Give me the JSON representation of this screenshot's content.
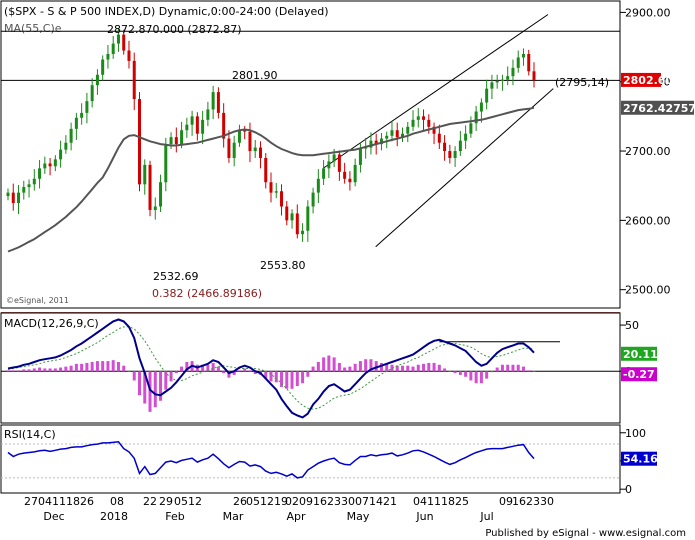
{
  "chart_data": [
    {
      "type": "candlestick",
      "title": "($SPX - S & P 500 INDEX,D) Dynamic,0:00-24:00 (Delayed)",
      "indicator_label": "MA(55,C)e",
      "watermark": "©eSignal, 2011",
      "y_ticks": [
        2900,
        2800,
        2700,
        2600,
        2500
      ],
      "y_tick_labels": [
        "2900.00",
        "2800.00",
        "2700.00",
        "2600.00",
        "2500.00"
      ],
      "ylim": [
        2475,
        2915
      ],
      "price_badge": {
        "value": 2802.6,
        "text": "2802.60",
        "color": "#e00000"
      },
      "ma_badge": {
        "value": 2762.42757,
        "text": "2762.42757",
        "color": "#505050"
      },
      "horizontal_lines": [
        {
          "value": 2872.87,
          "color": "#000000"
        },
        {
          "value": 2801.9,
          "color": "#000000"
        },
        {
          "value": 2466.89186,
          "color": "#8b1a1a"
        }
      ],
      "channel_lines": [
        {
          "from": [
            "Apr-02",
            2675
          ],
          "to": [
            "Jul-31",
            2897
          ]
        },
        {
          "from": [
            "Apr-24",
            2562
          ],
          "to": [
            "Aug-01",
            2790
          ]
        }
      ],
      "annotations": [
        {
          "text": "2872.870.000 (2872.87)",
          "color": "#000000"
        },
        {
          "text": "2801.90",
          "color": "#000000"
        },
        {
          "text": "(2795,14)",
          "color": "#000000"
        },
        {
          "text": "2532.69",
          "color": "#000000"
        },
        {
          "text": "2553.80",
          "color": "#000000"
        },
        {
          "text": "0.382 (2466.89186)",
          "color": "#8b1a1a"
        }
      ],
      "series_close": [
        2640,
        2625,
        2640,
        2648,
        2652,
        2660,
        2675,
        2682,
        2678,
        2688,
        2702,
        2712,
        2732,
        2748,
        2755,
        2772,
        2795,
        2810,
        2832,
        2840,
        2855,
        2868,
        2845,
        2830,
        2775,
        2652,
        2680,
        2615,
        2620,
        2655,
        2710,
        2720,
        2710,
        2730,
        2738,
        2750,
        2725,
        2745,
        2760,
        2785,
        2755,
        2718,
        2690,
        2712,
        2730,
        2728,
        2700,
        2705,
        2690,
        2655,
        2640,
        2642,
        2620,
        2600,
        2610,
        2580,
        2585,
        2620,
        2640,
        2660,
        2675,
        2685,
        2695,
        2670,
        2660,
        2655,
        2680,
        2705,
        2705,
        2715,
        2710,
        2718,
        2722,
        2730,
        2720,
        2725,
        2735,
        2745,
        2750,
        2745,
        2735,
        2725,
        2712,
        2700,
        2690,
        2700,
        2715,
        2725,
        2740,
        2757,
        2770,
        2790,
        2799,
        2801,
        2803,
        2808,
        2820,
        2835,
        2840,
        2815,
        2802.6
      ],
      "ma_values": [
        2555,
        2558,
        2561,
        2565,
        2569,
        2573,
        2578,
        2583,
        2588,
        2593,
        2599,
        2605,
        2612,
        2619,
        2627,
        2636,
        2645,
        2654,
        2662,
        2675,
        2690,
        2705,
        2717,
        2722,
        2723,
        2720,
        2717,
        2714,
        2712,
        2710,
        2709,
        2708,
        2708,
        2709,
        2710,
        2711,
        2712,
        2714,
        2716,
        2718,
        2720,
        2722,
        2725,
        2728,
        2730,
        2731,
        2730,
        2727,
        2723,
        2718,
        2712,
        2707,
        2703,
        2700,
        2697,
        2695,
        2694,
        2694,
        2694,
        2695,
        2696,
        2697,
        2698,
        2699,
        2700,
        2701,
        2702,
        2704,
        2706,
        2708,
        2710,
        2712,
        2714,
        2716,
        2718,
        2720,
        2722,
        2725,
        2727,
        2729,
        2731,
        2733,
        2735,
        2737,
        2739,
        2740,
        2741,
        2742,
        2743,
        2744,
        2745,
        2747,
        2749,
        2751,
        2753,
        2755,
        2757,
        2759,
        2760,
        2761,
        2762.42757
      ]
    },
    {
      "type": "macd",
      "label": "MACD(12,26,9,C)",
      "y_ticks": [
        50,
        0
      ],
      "ylim": [
        -55,
        62
      ],
      "value_badge": {
        "text": "20.11",
        "color": "#1fa61f"
      },
      "hist_badge": {
        "text": "-0.27",
        "color": "#cc00cc"
      },
      "macd": [
        3,
        4,
        5,
        7,
        8,
        10,
        12,
        13,
        14,
        15,
        17,
        20,
        23,
        27,
        30,
        34,
        38,
        42,
        46,
        50,
        54,
        56,
        54,
        48,
        36,
        14,
        -2,
        -20,
        -25,
        -26,
        -22,
        -18,
        -12,
        -5,
        2,
        6,
        4,
        6,
        8,
        12,
        10,
        4,
        -2,
        0,
        4,
        6,
        4,
        0,
        -2,
        -8,
        -14,
        -20,
        -30,
        -38,
        -45,
        -48,
        -50,
        -46,
        -36,
        -30,
        -22,
        -16,
        -14,
        -18,
        -22,
        -20,
        -14,
        -8,
        -2,
        2,
        4,
        6,
        8,
        10,
        12,
        14,
        16,
        18,
        22,
        26,
        30,
        33,
        34,
        32,
        30,
        28,
        25,
        22,
        16,
        10,
        6,
        8,
        14,
        20,
        24,
        26,
        28,
        30,
        30,
        26,
        20.11
      ],
      "signal": [
        2,
        3,
        4,
        5,
        6,
        7,
        8,
        10,
        11,
        12,
        13,
        15,
        17,
        19,
        22,
        25,
        28,
        31,
        35,
        39,
        42,
        46,
        48,
        48,
        46,
        40,
        33,
        24,
        14,
        6,
        -2,
        -7,
        -10,
        -10,
        -8,
        -5,
        -3,
        -1,
        1,
        3,
        5,
        6,
        5,
        4,
        3,
        3,
        3,
        3,
        2,
        0,
        -3,
        -8,
        -13,
        -19,
        -26,
        -32,
        -37,
        -40,
        -41,
        -40,
        -37,
        -33,
        -29,
        -27,
        -26,
        -25,
        -22,
        -19,
        -15,
        -11,
        -7,
        -3,
        0,
        3,
        6,
        8,
        10,
        13,
        15,
        18,
        21,
        24,
        27,
        29,
        30,
        30,
        29,
        28,
        26,
        23,
        19,
        16,
        15,
        16,
        17,
        19,
        21,
        23,
        25,
        25,
        24
      ],
      "histogram": [
        1,
        1,
        1,
        2,
        2,
        3,
        4,
        3,
        3,
        3,
        4,
        5,
        6,
        8,
        8,
        9,
        10,
        11,
        11,
        11,
        12,
        10,
        6,
        0,
        -10,
        -26,
        -35,
        -44,
        -39,
        -32,
        -20,
        -11,
        -2,
        5,
        10,
        11,
        7,
        7,
        7,
        9,
        5,
        -2,
        -7,
        -4,
        1,
        3,
        1,
        -3,
        -4,
        -8,
        -11,
        -12,
        -17,
        -19,
        -19,
        -16,
        -13,
        -6,
        5,
        10,
        15,
        17,
        15,
        9,
        4,
        5,
        8,
        11,
        13,
        13,
        11,
        9,
        8,
        7,
        6,
        6,
        6,
        5,
        7,
        8,
        9,
        9,
        7,
        3,
        0,
        -2,
        -4,
        -6,
        -10,
        -13,
        -13,
        -8,
        -1,
        4,
        7,
        7,
        7,
        7,
        5,
        1,
        -0.27
      ],
      "resistance_line_value": 32
    },
    {
      "type": "rsi",
      "label": "RSI(14,C)",
      "y_ticks": [
        100,
        50,
        0
      ],
      "ylim": [
        -5,
        112
      ],
      "value_badge": {
        "text": "54.16",
        "color": "#0000cc"
      },
      "levels": [
        80,
        20
      ],
      "rsi": [
        65,
        58,
        62,
        64,
        65,
        66,
        68,
        69,
        67,
        69,
        71,
        72,
        74,
        75,
        75,
        77,
        79,
        80,
        82,
        82,
        83,
        84,
        72,
        66,
        55,
        28,
        40,
        26,
        28,
        38,
        48,
        50,
        47,
        51,
        53,
        55,
        48,
        52,
        55,
        62,
        54,
        45,
        38,
        44,
        49,
        48,
        41,
        43,
        40,
        32,
        28,
        30,
        27,
        23,
        27,
        20,
        22,
        34,
        40,
        46,
        50,
        53,
        55,
        47,
        44,
        43,
        51,
        58,
        58,
        61,
        59,
        61,
        62,
        64,
        59,
        61,
        64,
        68,
        69,
        66,
        62,
        58,
        53,
        48,
        44,
        47,
        52,
        56,
        61,
        65,
        68,
        71,
        72,
        72,
        72,
        74,
        76,
        78,
        79,
        65,
        54.16
      ]
    }
  ],
  "x_axis": {
    "day_labels": [
      "27",
      "04",
      "11",
      "18",
      "26",
      "08",
      "22",
      "29",
      "05",
      "12",
      "26",
      "05",
      "12",
      "19",
      "02",
      "09",
      "16",
      "23",
      "30",
      "07",
      "14",
      "21",
      "04",
      "11",
      "18",
      "25",
      "09",
      "16",
      "23",
      "30"
    ],
    "month_labels": [
      "Dec",
      "2018",
      "Feb",
      "Mar",
      "Apr",
      "May",
      "Jun",
      "Jul"
    ]
  },
  "footer": "Published by eSignal - www.esignal.com"
}
